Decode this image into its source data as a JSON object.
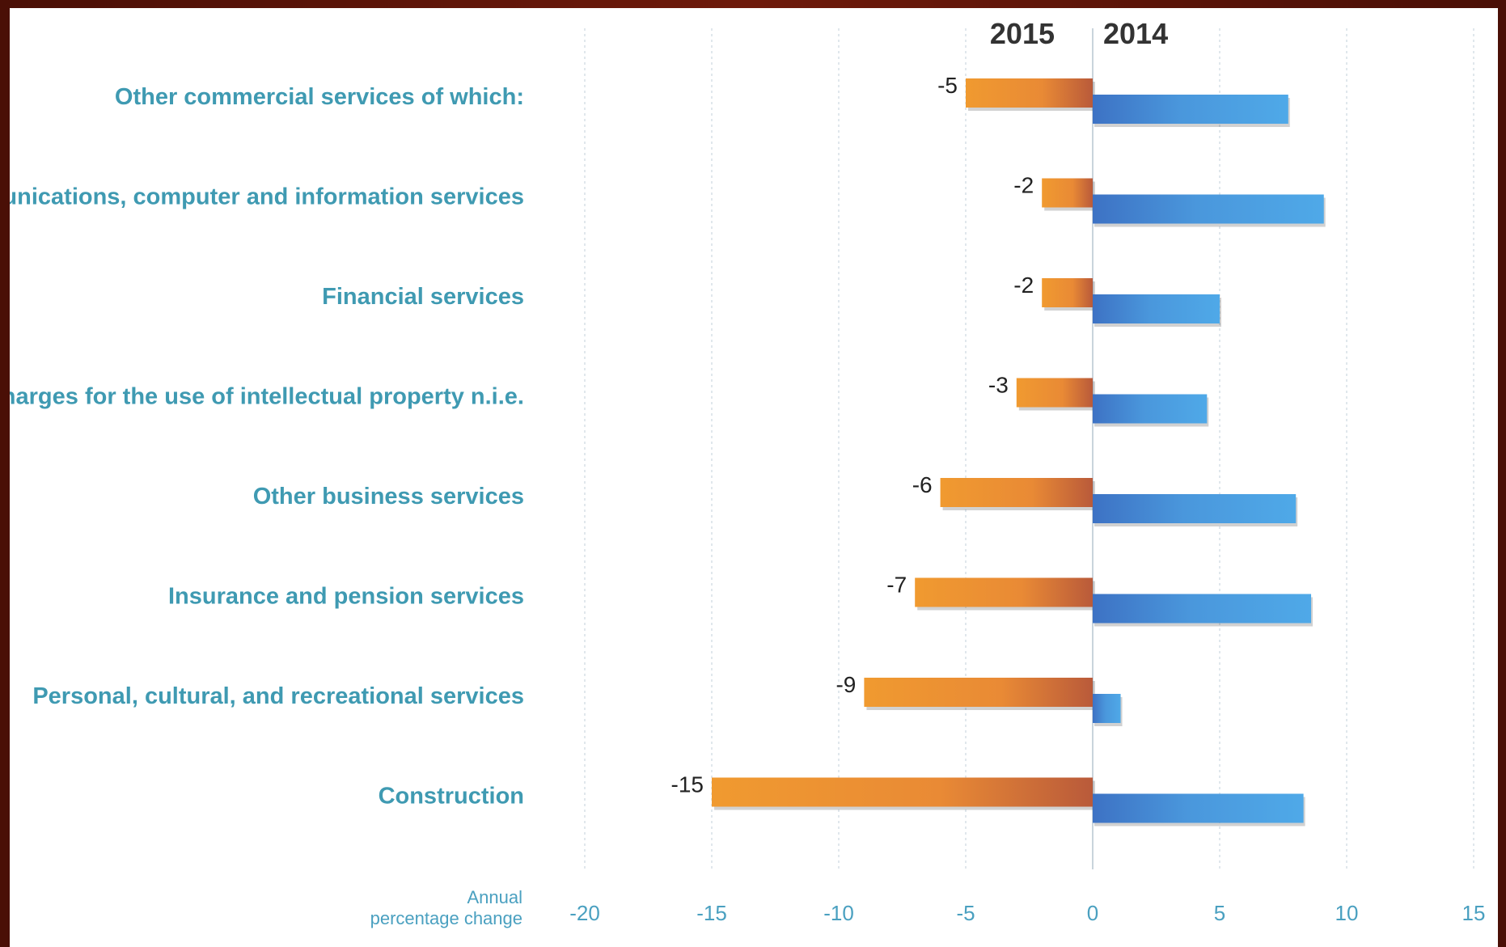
{
  "chart_data": {
    "type": "bar",
    "orientation": "horizontal",
    "categories": [
      "Other commercial services of which:",
      "Telecommunications, computer and information services",
      "Financial services",
      "Charges for the use of intellectual property n.i.e.",
      "Other business services",
      "Insurance and pension services",
      "Personal, cultural, and recreational services",
      "Construction"
    ],
    "series": [
      {
        "name": "2015",
        "color": "#e8902e",
        "values": [
          -5,
          -2,
          -2,
          -3,
          -6,
          -7,
          -9,
          -15
        ],
        "labels": [
          "-5",
          "-2",
          "-2",
          "-3",
          "-6",
          "-7",
          "-9",
          "-15"
        ]
      },
      {
        "name": "2014",
        "color": "#4a9fe0",
        "values": [
          7.7,
          9.1,
          5.0,
          4.5,
          8.0,
          8.6,
          1.1,
          8.3
        ]
      }
    ],
    "xlim": [
      -20,
      15
    ],
    "xticks": [
      -20,
      -15,
      -10,
      -5,
      0,
      5,
      10,
      15
    ],
    "xlabel": [
      "Annual",
      "percentage change"
    ],
    "grid": true,
    "legend": "top-center"
  }
}
